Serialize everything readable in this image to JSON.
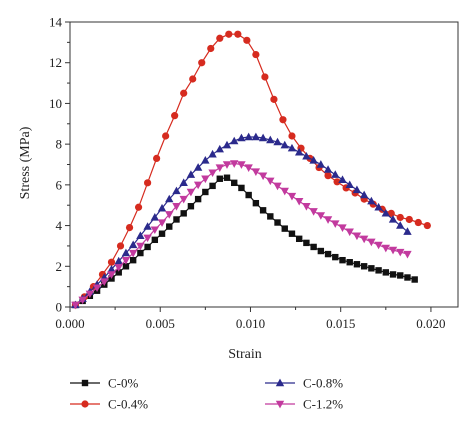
{
  "chart_data": {
    "type": "line",
    "xlabel": "Strain",
    "ylabel": "Stress (MPa)",
    "xlim": [
      0.0,
      0.0215
    ],
    "ylim": [
      0,
      14
    ],
    "x_ticks": [
      "0.000",
      "0.005",
      "0.010",
      "0.015",
      "0.020"
    ],
    "y_ticks": [
      "0",
      "2",
      "4",
      "6",
      "8",
      "10",
      "12",
      "14"
    ],
    "grid": false,
    "legend_position": "bottom",
    "series": [
      {
        "name": "C-0%",
        "color": "#111111",
        "marker": "square",
        "x": [
          0.0003,
          0.0007,
          0.0011,
          0.0015,
          0.0019,
          0.0023,
          0.0027,
          0.0031,
          0.0035,
          0.0039,
          0.0043,
          0.0047,
          0.0051,
          0.0055,
          0.0059,
          0.0063,
          0.0067,
          0.0071,
          0.0075,
          0.0079,
          0.0083,
          0.0087,
          0.0091,
          0.0095,
          0.0099,
          0.0103,
          0.0107,
          0.0111,
          0.0115,
          0.0119,
          0.0123,
          0.0127,
          0.0131,
          0.0135,
          0.0139,
          0.0143,
          0.0147,
          0.0151,
          0.0155,
          0.0159,
          0.0163,
          0.0167,
          0.0171,
          0.0175,
          0.0179,
          0.0183,
          0.0187,
          0.0191
        ],
        "y": [
          0.1,
          0.3,
          0.55,
          0.8,
          1.1,
          1.4,
          1.7,
          2.0,
          2.3,
          2.65,
          2.95,
          3.3,
          3.6,
          3.95,
          4.3,
          4.6,
          4.95,
          5.3,
          5.65,
          5.95,
          6.3,
          6.35,
          6.1,
          5.85,
          5.5,
          5.1,
          4.75,
          4.45,
          4.15,
          3.85,
          3.6,
          3.35,
          3.15,
          2.95,
          2.75,
          2.6,
          2.45,
          2.3,
          2.2,
          2.1,
          2.0,
          1.9,
          1.8,
          1.7,
          1.6,
          1.55,
          1.45,
          1.35
        ]
      },
      {
        "name": "C-0.4%",
        "color": "#d62b1f",
        "marker": "circle",
        "x": [
          0.0003,
          0.0008,
          0.0013,
          0.0018,
          0.0023,
          0.0028,
          0.0033,
          0.0038,
          0.0043,
          0.0048,
          0.0053,
          0.0058,
          0.0063,
          0.0068,
          0.0073,
          0.0078,
          0.0083,
          0.0088,
          0.0093,
          0.0098,
          0.0103,
          0.0108,
          0.0113,
          0.0118,
          0.0123,
          0.0128,
          0.0133,
          0.0138,
          0.0143,
          0.0148,
          0.0153,
          0.0158,
          0.0163,
          0.0168,
          0.0173,
          0.0178,
          0.0183,
          0.0188,
          0.0193,
          0.0198
        ],
        "y": [
          0.1,
          0.5,
          1.0,
          1.6,
          2.2,
          3.0,
          3.9,
          4.9,
          6.1,
          7.3,
          8.4,
          9.4,
          10.5,
          11.2,
          12.0,
          12.7,
          13.2,
          13.4,
          13.4,
          13.1,
          12.4,
          11.3,
          10.2,
          9.2,
          8.4,
          7.8,
          7.3,
          6.85,
          6.45,
          6.15,
          5.85,
          5.6,
          5.3,
          5.05,
          4.8,
          4.6,
          4.4,
          4.3,
          4.15,
          4.0
        ]
      },
      {
        "name": "C-0.8%",
        "color": "#2b2a8c",
        "marker": "triangle-up",
        "x": [
          0.0003,
          0.0007,
          0.0011,
          0.0015,
          0.0019,
          0.0023,
          0.0027,
          0.0031,
          0.0035,
          0.0039,
          0.0043,
          0.0047,
          0.0051,
          0.0055,
          0.0059,
          0.0063,
          0.0067,
          0.0071,
          0.0075,
          0.0079,
          0.0083,
          0.0087,
          0.0091,
          0.0095,
          0.0099,
          0.0103,
          0.0107,
          0.0111,
          0.0115,
          0.0119,
          0.0123,
          0.0127,
          0.0131,
          0.0135,
          0.0139,
          0.0143,
          0.0147,
          0.0151,
          0.0155,
          0.0159,
          0.0163,
          0.0167,
          0.0171,
          0.0175,
          0.0179,
          0.0183,
          0.0187
        ],
        "y": [
          0.1,
          0.4,
          0.75,
          1.1,
          1.45,
          1.85,
          2.25,
          2.65,
          3.05,
          3.5,
          3.95,
          4.4,
          4.85,
          5.3,
          5.7,
          6.1,
          6.5,
          6.85,
          7.2,
          7.5,
          7.75,
          7.95,
          8.15,
          8.3,
          8.35,
          8.35,
          8.3,
          8.2,
          8.1,
          7.95,
          7.8,
          7.6,
          7.4,
          7.2,
          7.0,
          6.75,
          6.5,
          6.25,
          6.0,
          5.75,
          5.5,
          5.2,
          4.9,
          4.6,
          4.3,
          4.0,
          3.7
        ]
      },
      {
        "name": "C-1.2%",
        "color": "#c23a9e",
        "marker": "triangle-down",
        "x": [
          0.0003,
          0.0007,
          0.0011,
          0.0015,
          0.0019,
          0.0023,
          0.0027,
          0.0031,
          0.0035,
          0.0039,
          0.0043,
          0.0047,
          0.0051,
          0.0055,
          0.0059,
          0.0063,
          0.0067,
          0.0071,
          0.0075,
          0.0079,
          0.0083,
          0.0087,
          0.0091,
          0.0095,
          0.0099,
          0.0103,
          0.0107,
          0.0111,
          0.0115,
          0.0119,
          0.0123,
          0.0127,
          0.0131,
          0.0135,
          0.0139,
          0.0143,
          0.0147,
          0.0151,
          0.0155,
          0.0159,
          0.0163,
          0.0167,
          0.0171,
          0.0175,
          0.0179,
          0.0183,
          0.0187
        ],
        "y": [
          0.1,
          0.35,
          0.65,
          0.95,
          1.25,
          1.6,
          1.95,
          2.3,
          2.65,
          3.0,
          3.4,
          3.8,
          4.15,
          4.55,
          4.95,
          5.3,
          5.65,
          6.0,
          6.3,
          6.6,
          6.85,
          7.0,
          7.05,
          7.0,
          6.85,
          6.65,
          6.45,
          6.2,
          5.95,
          5.7,
          5.45,
          5.2,
          4.95,
          4.7,
          4.5,
          4.3,
          4.1,
          3.9,
          3.7,
          3.5,
          3.35,
          3.2,
          3.05,
          2.9,
          2.8,
          2.7,
          2.6
        ]
      }
    ]
  }
}
